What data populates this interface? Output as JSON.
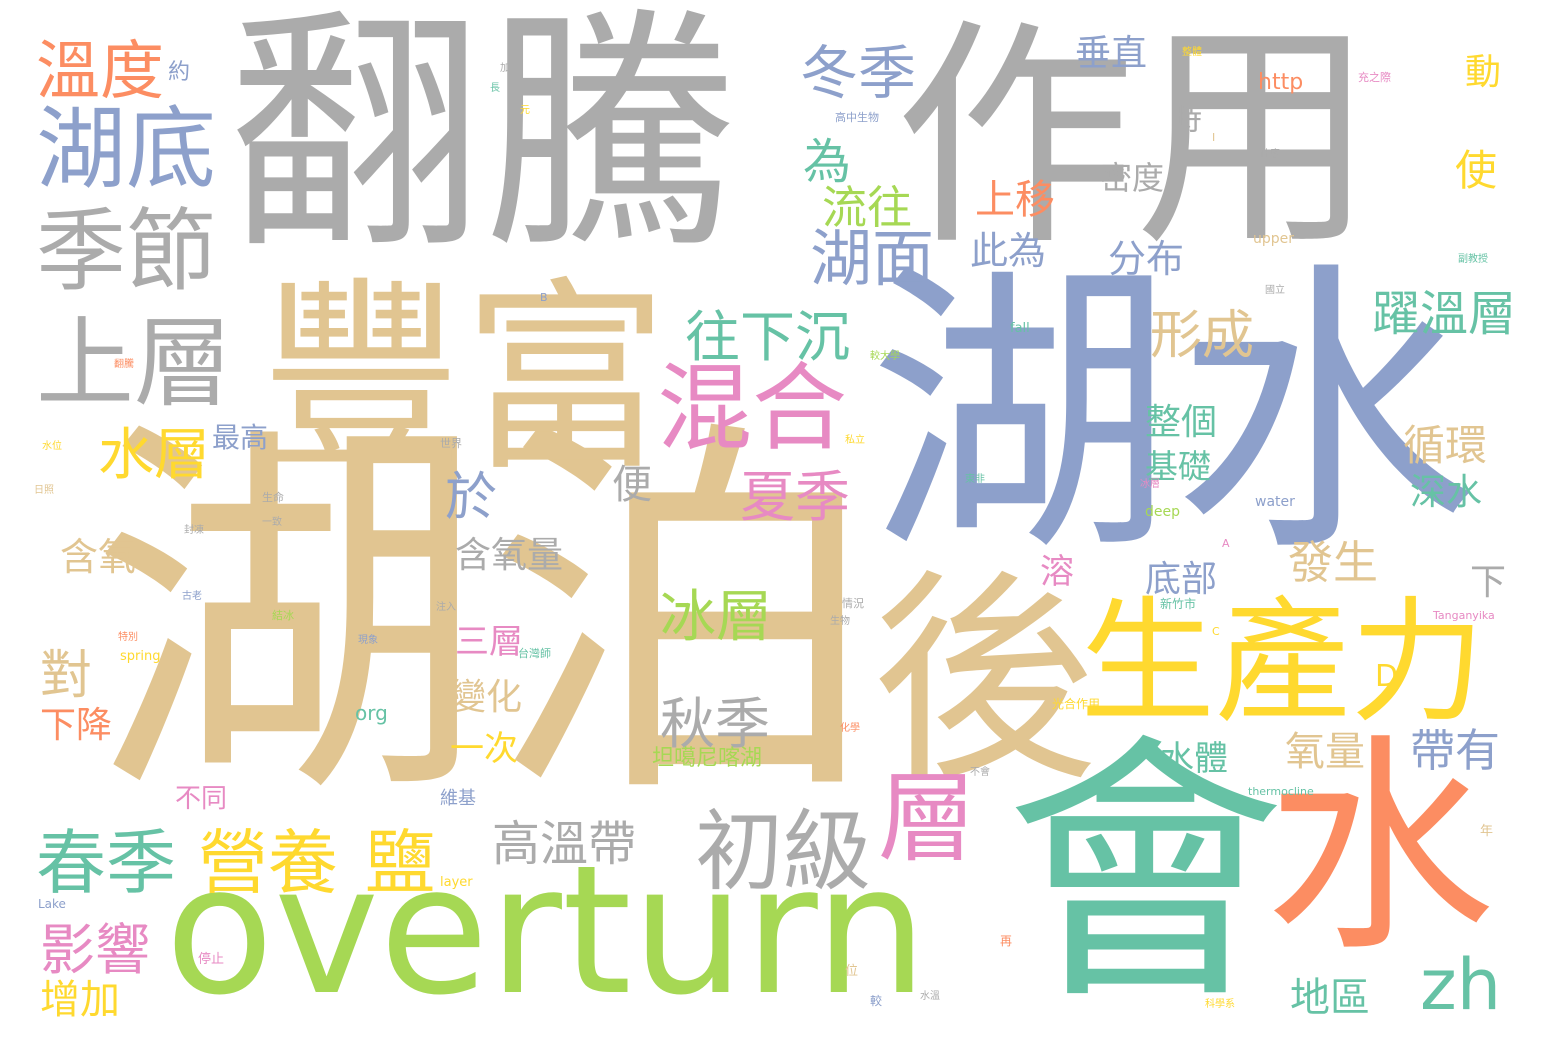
{
  "palette": {
    "gray": "#ababab",
    "tan": "#e1c591",
    "blue": "#8da0cb",
    "green": "#66c2a5",
    "lime": "#a6d854",
    "yellow": "#ffd92f",
    "orange": "#fc8d62",
    "pink": "#e78ac3",
    "background": "#ffffff"
  },
  "words": [
    {
      "text": "翻騰",
      "color": "gray"
    },
    {
      "text": "作用",
      "color": "gray"
    },
    {
      "text": "湖泊",
      "color": "tan"
    },
    {
      "text": "湖水",
      "color": "blue"
    },
    {
      "text": "豐富",
      "color": "tan"
    },
    {
      "text": "後",
      "color": "tan"
    },
    {
      "text": "會",
      "color": "green"
    },
    {
      "text": "水",
      "color": "orange"
    },
    {
      "text": "overturn",
      "color": "lime"
    },
    {
      "text": "生產力",
      "color": "yellow"
    },
    {
      "text": "混合",
      "color": "pink"
    },
    {
      "text": "湖底",
      "color": "blue"
    },
    {
      "text": "季節",
      "color": "gray"
    },
    {
      "text": "上層",
      "color": "gray"
    },
    {
      "text": "溫度",
      "color": "orange"
    },
    {
      "text": "冬季",
      "color": "blue"
    },
    {
      "text": "春季",
      "color": "green"
    },
    {
      "text": "營養",
      "color": "yellow"
    },
    {
      "text": "鹽",
      "color": "yellow"
    },
    {
      "text": "初級",
      "color": "gray"
    },
    {
      "text": "層",
      "color": "pink"
    },
    {
      "text": "水層",
      "color": "yellow"
    },
    {
      "text": "湖面",
      "color": "blue"
    },
    {
      "text": "往下沉",
      "color": "green"
    },
    {
      "text": "夏季",
      "color": "pink"
    },
    {
      "text": "影響",
      "color": "pink"
    },
    {
      "text": "冰層",
      "color": "lime"
    },
    {
      "text": "秋季",
      "color": "gray"
    },
    {
      "text": "zh",
      "color": "green"
    },
    {
      "text": "高溫帶",
      "color": "gray"
    },
    {
      "text": "形成",
      "color": "tan"
    },
    {
      "text": "躍溫層",
      "color": "green"
    },
    {
      "text": "流往",
      "color": "lime"
    },
    {
      "text": "為",
      "color": "green"
    },
    {
      "text": "於",
      "color": "blue"
    },
    {
      "text": "對",
      "color": "tan"
    },
    {
      "text": "增加",
      "color": "yellow"
    },
    {
      "text": "發生",
      "color": "tan"
    },
    {
      "text": "帶有",
      "color": "blue"
    },
    {
      "text": "氧量",
      "color": "tan"
    },
    {
      "text": "地區",
      "color": "green"
    },
    {
      "text": "垂直",
      "color": "blue"
    },
    {
      "text": "分布",
      "color": "blue"
    },
    {
      "text": "上移",
      "color": "orange"
    },
    {
      "text": "此為",
      "color": "blue"
    },
    {
      "text": "循環",
      "color": "tan"
    },
    {
      "text": "深水",
      "color": "green"
    },
    {
      "text": "使",
      "color": "yellow"
    },
    {
      "text": "動",
      "color": "yellow"
    },
    {
      "text": "整個",
      "color": "green"
    },
    {
      "text": "基礎",
      "color": "green"
    },
    {
      "text": "底部",
      "color": "blue"
    },
    {
      "text": "含氧",
      "color": "tan"
    },
    {
      "text": "含氧量",
      "color": "gray"
    },
    {
      "text": "下降",
      "color": "orange"
    },
    {
      "text": "變化",
      "color": "tan"
    },
    {
      "text": "一次",
      "color": "yellow"
    },
    {
      "text": "三層",
      "color": "pink"
    },
    {
      "text": "水體",
      "color": "green"
    },
    {
      "text": "最高",
      "color": "blue"
    },
    {
      "text": "便",
      "color": "gray"
    },
    {
      "text": "時",
      "color": "gray"
    },
    {
      "text": "密度",
      "color": "gray"
    },
    {
      "text": "溶",
      "color": "pink"
    },
    {
      "text": "下",
      "color": "gray"
    },
    {
      "text": "D",
      "color": "yellow"
    },
    {
      "text": "不同",
      "color": "pink"
    },
    {
      "text": "約",
      "color": "blue"
    },
    {
      "text": "http",
      "color": "orange"
    },
    {
      "text": "坦噶尼喀湖",
      "color": "lime"
    },
    {
      "text": "org",
      "color": "green"
    },
    {
      "text": "維基",
      "color": "blue"
    },
    {
      "text": "upper",
      "color": "tan"
    },
    {
      "text": "water",
      "color": "blue"
    },
    {
      "text": "deep",
      "color": "lime"
    },
    {
      "text": "spring",
      "color": "yellow"
    },
    {
      "text": "layer",
      "color": "yellow"
    },
    {
      "text": "fall",
      "color": "green"
    },
    {
      "text": "thermocline",
      "color": "green"
    },
    {
      "text": "Tanganyika",
      "color": "pink"
    },
    {
      "text": "Lake",
      "color": "blue"
    },
    {
      "text": "新竹市",
      "color": "green"
    },
    {
      "text": "台灣師",
      "color": "green"
    },
    {
      "text": "光合作用",
      "color": "yellow"
    },
    {
      "text": "高中生物",
      "color": "blue"
    },
    {
      "text": "停止",
      "color": "pink"
    },
    {
      "text": "再",
      "color": "orange"
    },
    {
      "text": "位",
      "color": "tan"
    },
    {
      "text": "較",
      "color": "blue"
    },
    {
      "text": "年",
      "color": "tan"
    },
    {
      "text": "世界",
      "color": "gray"
    },
    {
      "text": "生命",
      "color": "gray"
    },
    {
      "text": "注入",
      "color": "gray"
    },
    {
      "text": "一致",
      "color": "gray"
    },
    {
      "text": "封凍",
      "color": "gray"
    },
    {
      "text": "古老",
      "color": "blue"
    },
    {
      "text": "結冰",
      "color": "lime"
    },
    {
      "text": "現象",
      "color": "blue"
    },
    {
      "text": "特別",
      "color": "orange"
    },
    {
      "text": "情況",
      "color": "gray"
    },
    {
      "text": "生物",
      "color": "gray"
    },
    {
      "text": "水位",
      "color": "yellow"
    },
    {
      "text": "日照",
      "color": "tan"
    },
    {
      "text": "加上",
      "color": "gray"
    },
    {
      "text": "長",
      "color": "green"
    },
    {
      "text": "元",
      "color": "yellow"
    },
    {
      "text": "什麼",
      "color": "gray"
    },
    {
      "text": "充之際",
      "color": "pink"
    },
    {
      "text": "整體",
      "color": "yellow"
    },
    {
      "text": "國立",
      "color": "gray"
    },
    {
      "text": "副教授",
      "color": "green"
    },
    {
      "text": "翻騰",
      "color": "orange"
    },
    {
      "text": "較大學",
      "color": "lime"
    },
    {
      "text": "私立",
      "color": "yellow"
    },
    {
      "text": "東非",
      "color": "green"
    },
    {
      "text": "冰層",
      "color": "pink"
    },
    {
      "text": "不會",
      "color": "gray"
    },
    {
      "text": "化學",
      "color": "orange"
    },
    {
      "text": "水溫",
      "color": "gray"
    },
    {
      "text": "科學系",
      "color": "yellow"
    },
    {
      "text": "B",
      "color": "blue"
    },
    {
      "text": "C",
      "color": "yellow"
    },
    {
      "text": "A",
      "color": "pink"
    },
    {
      "text": "I",
      "color": "tan"
    }
  ]
}
